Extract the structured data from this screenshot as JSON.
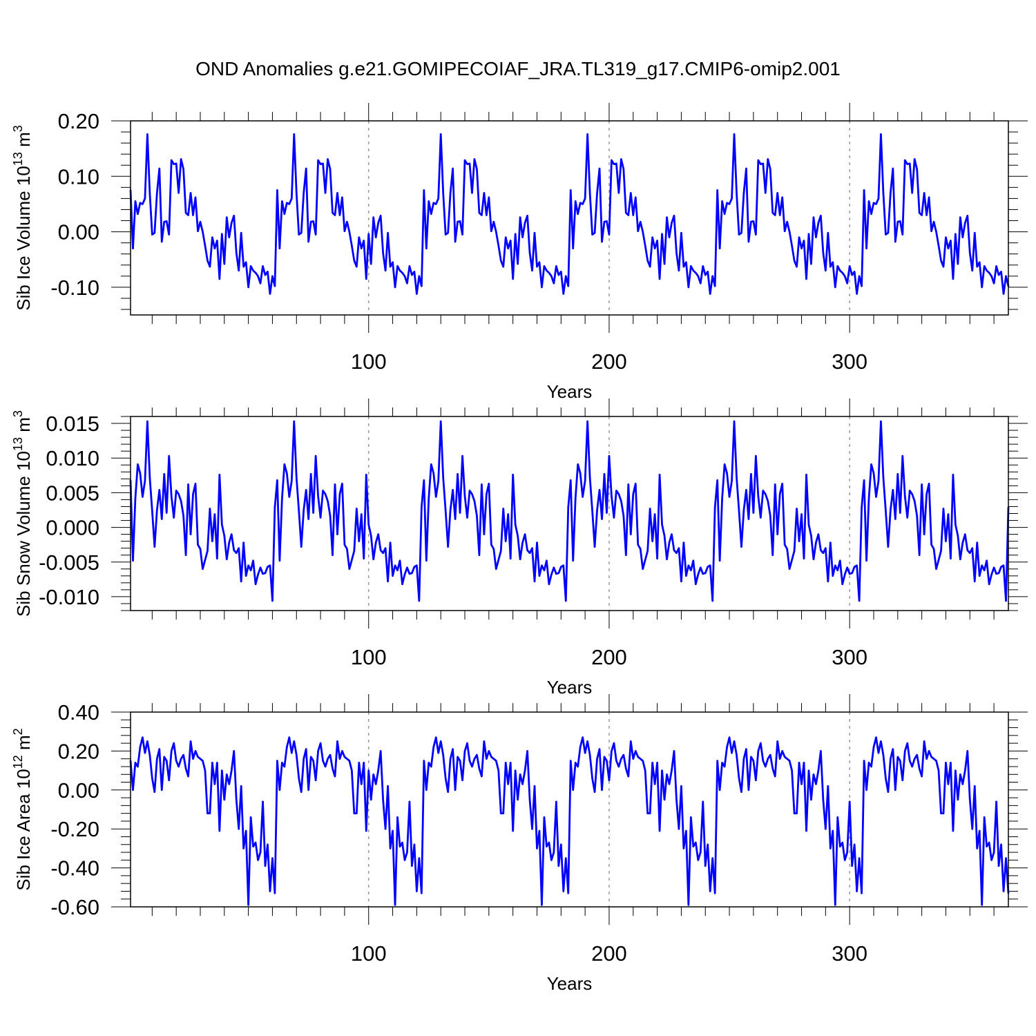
{
  "title": "OND Anomalies g.e21.GOMIPECOIAF_JRA.TL319_g17.CMIP6-omip2.001",
  "line_color": "#0000ff",
  "chart_data": [
    {
      "type": "line",
      "ylabel": "Sib Ice Volume 10",
      "ylabel_exp": "13",
      "ylabel_unit": " m",
      "ylabel_unit_exp": "3",
      "xlabel": "Years",
      "xlim": [
        1,
        366
      ],
      "ylim": [
        -0.15,
        0.2
      ],
      "yticks": [
        -0.1,
        0.0,
        0.1,
        0.2
      ],
      "ytick_labels": [
        "-0.10",
        "0.00",
        "0.10",
        "0.20"
      ],
      "xticks": [
        100,
        200,
        300
      ],
      "xtick_labels": [
        "100",
        "200",
        "300"
      ],
      "cycle_length": 61,
      "cycle_values": [
        0.075,
        -0.03,
        0.055,
        0.032,
        0.052,
        0.05,
        0.06,
        0.176,
        0.07,
        -0.005,
        -0.002,
        0.07,
        0.114,
        -0.018,
        0.018,
        0.019,
        -0.005,
        0.129,
        0.122,
        0.123,
        0.07,
        0.131,
        0.113,
        0.034,
        0.03,
        0.07,
        0.03,
        0.062,
        0.001,
        0.018,
        0.0,
        -0.025,
        -0.052,
        -0.063,
        -0.01,
        -0.03,
        -0.016,
        -0.085,
        -0.004,
        -0.058,
        0.026,
        -0.01,
        0.016,
        0.029,
        -0.038,
        -0.07,
        -0.002,
        -0.063,
        -0.055,
        -0.1,
        -0.062,
        -0.07,
        -0.074,
        -0.08,
        -0.093,
        -0.062,
        -0.078,
        -0.072,
        -0.112,
        -0.08,
        -0.098
      ]
    },
    {
      "type": "line",
      "ylabel": "Sib Snow Volume 10",
      "ylabel_exp": "13",
      "ylabel_unit": " m",
      "ylabel_unit_exp": "3",
      "xlabel": "Years",
      "xlim": [
        1,
        366
      ],
      "ylim": [
        -0.012,
        0.016
      ],
      "yticks": [
        -0.01,
        -0.005,
        0.0,
        0.005,
        0.01,
        0.015
      ],
      "ytick_labels": [
        "-0.010",
        "-0.005",
        "0.000",
        "0.005",
        "0.010",
        "0.015"
      ],
      "xticks": [
        100,
        200,
        300
      ],
      "xtick_labels": [
        "100",
        "200",
        "300"
      ],
      "cycle_length": 61,
      "cycle_values": [
        0.0068,
        -0.0048,
        0.0042,
        0.0091,
        0.0078,
        0.0044,
        0.0067,
        0.0153,
        0.0072,
        0.0024,
        -0.0028,
        0.0025,
        0.0054,
        0.0012,
        0.0077,
        0.0021,
        0.0103,
        0.0045,
        0.0014,
        0.0053,
        0.0048,
        0.0038,
        0.0017,
        -0.004,
        0.0062,
        -0.001,
        0.0048,
        0.0063,
        -0.0025,
        -0.0031,
        -0.006,
        -0.0047,
        -0.0034,
        0.0027,
        -0.002,
        0.0019,
        -0.0045,
        0.0076,
        0.0004,
        -0.0012,
        -0.0046,
        -0.0022,
        -0.001,
        -0.0033,
        -0.0037,
        -0.003,
        -0.0078,
        -0.0022,
        -0.007,
        -0.0055,
        -0.0062,
        -0.0048,
        -0.0082,
        -0.0068,
        -0.0058,
        -0.0067,
        -0.0066,
        -0.0057,
        -0.0055,
        -0.0106,
        0.0029
      ]
    },
    {
      "type": "line",
      "ylabel": "Sib Ice Area 10",
      "ylabel_exp": "12",
      "ylabel_unit": " m",
      "ylabel_unit_exp": "2",
      "xlabel": "Years",
      "xlim": [
        1,
        366
      ],
      "ylim": [
        -0.6,
        0.4
      ],
      "yticks": [
        -0.6,
        -0.4,
        -0.2,
        0.0,
        0.2,
        0.4
      ],
      "ytick_labels": [
        "-0.60",
        "-0.40",
        "-0.20",
        "0.00",
        "0.20",
        "0.40"
      ],
      "xticks": [
        100,
        200,
        300
      ],
      "xtick_labels": [
        "100",
        "200",
        "300"
      ],
      "cycle_length": 61,
      "cycle_values": [
        0.15,
        0.0,
        0.14,
        0.12,
        0.22,
        0.27,
        0.19,
        0.25,
        0.18,
        0.06,
        -0.01,
        0.16,
        0.21,
        0.0,
        0.17,
        0.15,
        0.05,
        0.2,
        0.24,
        0.15,
        0.12,
        0.16,
        0.18,
        0.11,
        0.07,
        0.25,
        0.16,
        0.2,
        0.17,
        0.16,
        0.15,
        0.1,
        -0.12,
        -0.12,
        0.14,
        0.03,
        0.14,
        -0.21,
        0.1,
        -0.05,
        0.08,
        0.03,
        0.1,
        0.2,
        -0.05,
        -0.2,
        0.02,
        -0.3,
        -0.21,
        -0.59,
        -0.14,
        -0.29,
        -0.27,
        -0.36,
        -0.32,
        -0.06,
        -0.39,
        -0.28,
        -0.52,
        -0.35,
        -0.53
      ]
    }
  ]
}
